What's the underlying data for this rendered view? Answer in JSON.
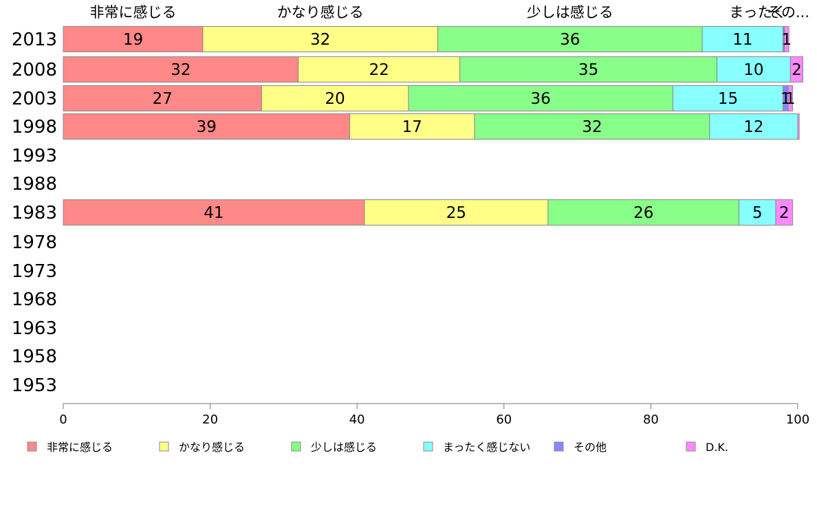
{
  "chart_data": {
    "type": "bar",
    "orientation": "horizontal",
    "stacked": true,
    "years": [
      "2013",
      "2008",
      "2003",
      "1998",
      "1993",
      "1988",
      "1983",
      "1978",
      "1973",
      "1968",
      "1963",
      "1958",
      "1953"
    ],
    "series": [
      {
        "name": "非常に感じる",
        "color": "#ff8888",
        "values": [
          19,
          32,
          27,
          39,
          null,
          null,
          41,
          null,
          null,
          null,
          null,
          null,
          null
        ],
        "labels": [
          "19",
          "32",
          "27",
          "39",
          "",
          "",
          "41",
          "",
          "",
          "",
          "",
          "",
          ""
        ]
      },
      {
        "name": "かなり感じる",
        "color": "#ffff88",
        "values": [
          32,
          22,
          20,
          17,
          null,
          null,
          25,
          null,
          null,
          null,
          null,
          null,
          null
        ],
        "labels": [
          "32",
          "22",
          "20",
          "17",
          "",
          "",
          "25",
          "",
          "",
          "",
          "",
          "",
          ""
        ]
      },
      {
        "name": "少しは感じる",
        "color": "#88ff88",
        "values": [
          36,
          35,
          36,
          32,
          null,
          null,
          26,
          null,
          null,
          null,
          null,
          null,
          null
        ],
        "labels": [
          "36",
          "35",
          "36",
          "32",
          "",
          "",
          "26",
          "",
          "",
          "",
          "",
          "",
          ""
        ]
      },
      {
        "name": "まったく感じない",
        "color": "#88ffff",
        "values": [
          11,
          10,
          15,
          12,
          null,
          null,
          5,
          null,
          null,
          null,
          null,
          null,
          null
        ],
        "labels": [
          "11",
          "10",
          "15",
          "12",
          "",
          "",
          "5",
          "",
          "",
          "",
          "",
          "",
          ""
        ]
      },
      {
        "name": "その他",
        "color": "#8888ff",
        "values": [
          0.2,
          0,
          0.7,
          0,
          null,
          null,
          0,
          null,
          null,
          null,
          null,
          null,
          null
        ],
        "labels": [
          "",
          "",
          "1",
          "",
          "",
          "",
          "",
          "",
          "",
          "",
          "",
          "",
          ""
        ]
      },
      {
        "name": "D.K.",
        "color": "#ff88ff",
        "values": [
          0.6,
          1.7,
          0.6,
          0.2,
          null,
          null,
          2.3,
          null,
          null,
          null,
          null,
          null,
          null
        ],
        "labels": [
          "1",
          "2",
          "1",
          "",
          "",
          "",
          "2",
          "",
          "",
          "",
          "",
          "",
          ""
        ]
      }
    ],
    "top_labels": [
      "非常に感じる",
      "かなり感じる",
      "少しは感じる",
      "まったく感じない",
      "その..."
    ],
    "top_label_display": [
      "非常に感じる",
      "かなり感じる",
      "少しは感じる",
      "まったく",
      "その..."
    ],
    "xlim": [
      0,
      100
    ],
    "xticks": [
      "0",
      "20",
      "40",
      "60",
      "80",
      "100"
    ],
    "legend_position": "bottom",
    "grid": false
  }
}
